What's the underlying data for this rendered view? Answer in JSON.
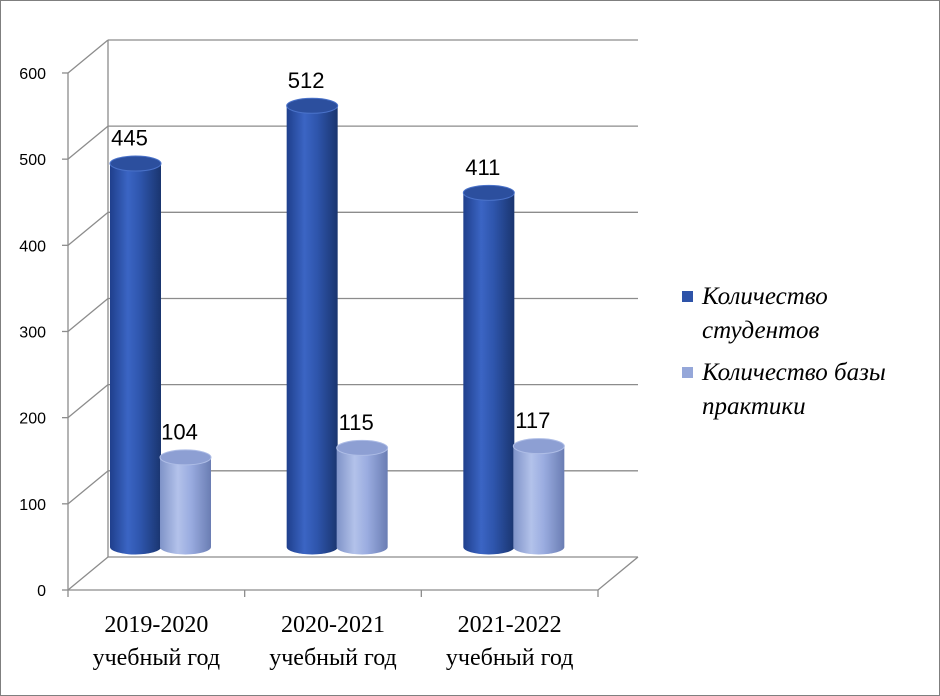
{
  "chart_data": {
    "type": "bar",
    "categories": [
      "2019-2020 учебный год",
      "2020-2021 учебный год",
      "2021-2022 учебный год"
    ],
    "category_lines": [
      [
        "2019-2020",
        "учебный год"
      ],
      [
        "2020-2021",
        "учебный год"
      ],
      [
        "2021-2022",
        "учебный год"
      ]
    ],
    "series": [
      {
        "name": "Количество студентов",
        "values": [
          445,
          512,
          411
        ],
        "color": "#2e53a8"
      },
      {
        "name": "Количество базы практики",
        "values": [
          104,
          115,
          117
        ],
        "color": "#95a7d9"
      }
    ],
    "ylim": [
      0,
      600
    ],
    "yticks": [
      0,
      100,
      200,
      300,
      400,
      500,
      600
    ],
    "grid": true,
    "legend": "right",
    "style": "3d-cylinder"
  },
  "legend": {
    "items": [
      {
        "label": "Количество студентов",
        "color": "#2e53a8"
      },
      {
        "label": "Количество базы практики",
        "color": "#95a7d9"
      }
    ]
  }
}
